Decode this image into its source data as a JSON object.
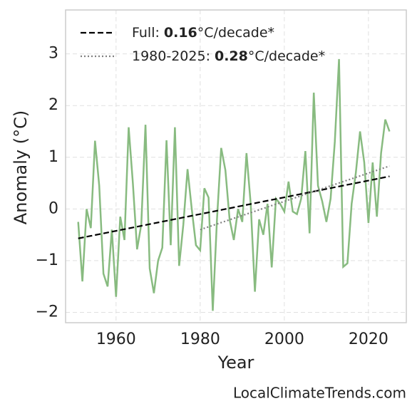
{
  "chart_data": {
    "type": "line",
    "xlabel": "Year",
    "ylabel": "Anomaly (°C)",
    "source": "LocalClimateTrends.com",
    "x": [
      1951,
      1952,
      1953,
      1954,
      1955,
      1956,
      1957,
      1958,
      1959,
      1960,
      1961,
      1962,
      1963,
      1964,
      1965,
      1966,
      1967,
      1968,
      1969,
      1970,
      1971,
      1972,
      1973,
      1974,
      1975,
      1976,
      1977,
      1978,
      1979,
      1980,
      1981,
      1982,
      1983,
      1984,
      1985,
      1986,
      1987,
      1988,
      1989,
      1990,
      1991,
      1992,
      1993,
      1994,
      1995,
      1996,
      1997,
      1998,
      1999,
      2000,
      2001,
      2002,
      2003,
      2004,
      2005,
      2006,
      2007,
      2008,
      2009,
      2010,
      2011,
      2012,
      2013,
      2014,
      2015,
      2016,
      2017,
      2018,
      2019,
      2020,
      2021,
      2022,
      2023,
      2024,
      2025
    ],
    "series": [
      {
        "color": "#88bb80",
        "values": [
          -0.25,
          -1.4,
          0.0,
          -0.37,
          1.32,
          0.45,
          -1.25,
          -1.5,
          -0.4,
          -1.7,
          -0.15,
          -0.6,
          1.58,
          0.5,
          -0.78,
          -0.3,
          1.63,
          -1.15,
          -1.63,
          -1.0,
          -0.75,
          1.33,
          -0.7,
          1.58,
          -1.1,
          -0.3,
          0.77,
          0.0,
          -0.7,
          -0.8,
          0.4,
          0.22,
          -1.97,
          -0.2,
          1.18,
          0.75,
          -0.2,
          -0.6,
          0.0,
          -0.25,
          1.08,
          0.1,
          -1.6,
          -0.2,
          -0.5,
          0.1,
          -1.13,
          0.2,
          0.1,
          -0.05,
          0.53,
          -0.05,
          -0.1,
          0.2,
          1.12,
          -0.47,
          2.25,
          0.45,
          0.15,
          -0.25,
          0.2,
          1.3,
          2.9,
          -1.12,
          -1.05,
          0.1,
          0.7,
          1.5,
          0.9,
          -0.27,
          0.9,
          -0.15,
          1.08,
          1.73,
          1.5
        ]
      }
    ],
    "trends": [
      {
        "name": "Full:",
        "rate": 0.16,
        "unit": "°C/decade*",
        "color": "#000000",
        "style": "dashed",
        "x": [
          1951,
          2025
        ],
        "values": [
          -0.57,
          0.63
        ]
      },
      {
        "name": "1980-2025:",
        "rate": 0.28,
        "unit": "°C/decade*",
        "color": "#808080",
        "style": "dotted",
        "x": [
          1980,
          2025
        ],
        "values": [
          -0.4,
          0.83
        ]
      }
    ],
    "xlim": [
      1948,
      2029
    ],
    "ylim": [
      -2.2,
      3.85
    ],
    "xticks": [
      1960,
      1980,
      2000,
      2020
    ],
    "yticks": [
      {
        "value": -2,
        "label": "−2"
      },
      {
        "value": -1,
        "label": "−1"
      },
      0,
      1,
      2,
      3
    ],
    "grid": true,
    "legend": "upper left"
  }
}
